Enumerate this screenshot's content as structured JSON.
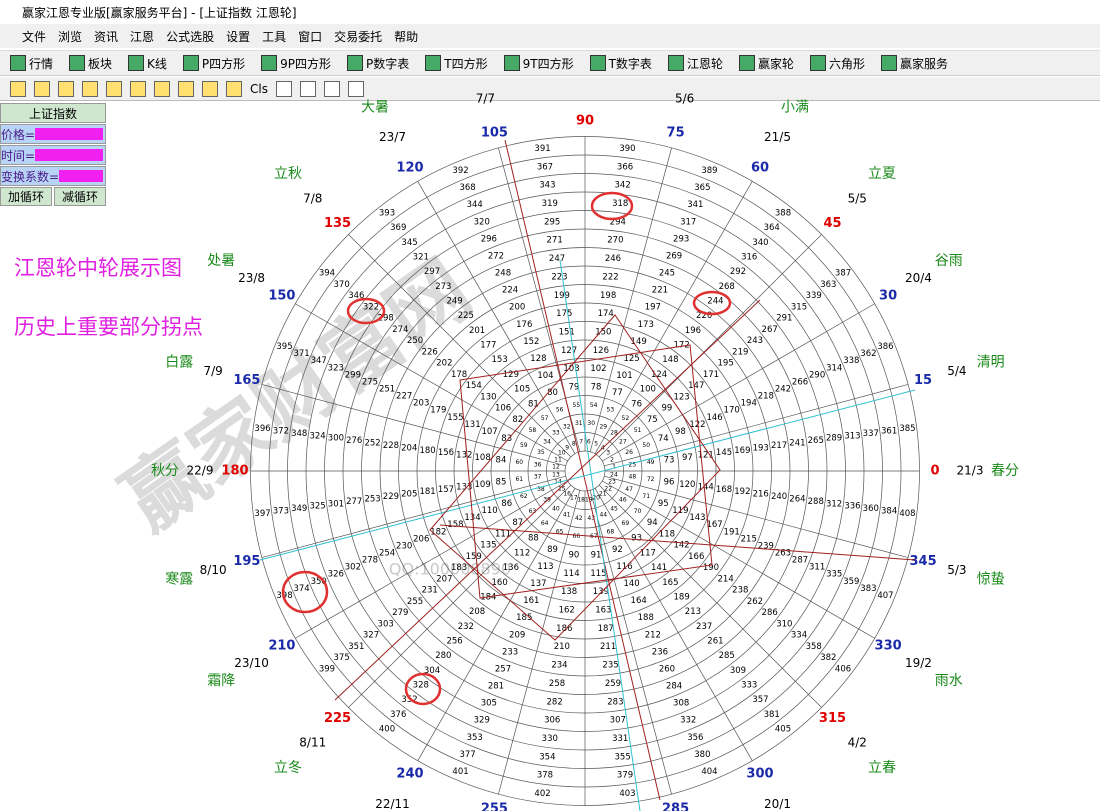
{
  "window": {
    "title": "赢家江恩专业版[赢家服务平台] - [上证指数 江恩轮]"
  },
  "menu": [
    "文件",
    "浏览",
    "资讯",
    "江恩",
    "公式选股",
    "设置",
    "工具",
    "窗口",
    "交易委托",
    "帮助"
  ],
  "toolbar": [
    "行情",
    "板块",
    "K线",
    "P四方形",
    "9P四方形",
    "P数字表",
    "T四方形",
    "9T四方形",
    "T数字表",
    "江恩轮",
    "赢家轮",
    "六角形",
    "赢家服务"
  ],
  "toolbar2": {
    "cls": "Cls"
  },
  "panel": {
    "title": "上证指数",
    "fields": [
      "价格=",
      "时间=",
      "变换系数="
    ],
    "buttons": [
      "加循环",
      "减循环"
    ]
  },
  "annotations": [
    "江恩轮中轮展示图",
    "历史上重要部分拐点"
  ],
  "watermark": [
    "赢家财富网",
    "QQ:100008890"
  ],
  "wheel": {
    "outer": [
      {
        "angle": 0,
        "date": "21/3",
        "term": "春分"
      },
      {
        "angle": 15,
        "date": "5/4",
        "term": "清明"
      },
      {
        "angle": 30,
        "date": "20/4",
        "term": "谷雨"
      },
      {
        "angle": 45,
        "date": "5/5",
        "term": "立夏"
      },
      {
        "angle": 60,
        "date": "21/5",
        "term": "小满"
      },
      {
        "angle": 75,
        "date": "5/6"
      },
      {
        "angle": 90
      },
      {
        "angle": 105,
        "date": "7/7"
      },
      {
        "angle": 120,
        "date": "23/7",
        "term": "大暑"
      },
      {
        "angle": 135,
        "date": "7/8",
        "term": "立秋"
      },
      {
        "angle": 150,
        "date": "23/8",
        "term": "处暑"
      },
      {
        "angle": 165,
        "date": "7/9",
        "term": "白露"
      },
      {
        "angle": 180,
        "date": "22/9",
        "term": "秋分"
      },
      {
        "angle": 195,
        "date": "8/10",
        "term": "寒露"
      },
      {
        "angle": 210,
        "date": "23/10",
        "term": "霜降"
      },
      {
        "angle": 225,
        "date": "8/11",
        "term": "立冬"
      },
      {
        "angle": 240,
        "date": "22/11"
      },
      {
        "angle": 255
      },
      {
        "angle": 285
      },
      {
        "angle": 300,
        "date": "20/1"
      },
      {
        "angle": 315,
        "date": "4/2",
        "term": "立春"
      },
      {
        "angle": 330,
        "date": "19/2",
        "term": "雨水"
      },
      {
        "angle": 345,
        "date": "5/3",
        "term": "惊蛰"
      }
    ],
    "numbers": [
      1,
      2,
      3,
      4,
      5,
      6,
      7,
      8,
      9,
      10,
      11,
      12,
      13,
      14,
      15,
      16,
      17,
      18,
      19,
      20,
      21,
      22,
      23,
      24,
      25,
      26,
      27,
      28,
      29,
      30,
      31,
      32,
      33,
      34,
      35,
      36,
      37,
      38,
      39,
      40,
      41,
      42,
      43,
      44,
      45,
      46,
      47,
      48,
      49,
      50,
      51,
      52,
      53,
      54,
      55,
      56,
      57,
      58,
      59,
      60,
      61,
      62,
      63,
      64,
      65,
      66,
      67,
      68,
      69,
      70,
      71,
      72,
      73,
      74,
      75,
      76,
      77,
      78,
      79,
      80,
      81,
      82,
      83,
      84,
      85,
      86,
      87,
      88,
      89,
      90,
      91,
      92,
      93,
      94,
      95,
      96,
      97,
      98,
      99,
      100,
      101,
      102,
      103,
      104,
      105,
      106,
      107,
      108,
      109,
      110,
      111,
      112,
      113,
      114,
      115,
      116,
      117,
      118,
      119,
      120,
      121,
      122,
      123,
      124,
      125,
      126,
      127,
      128,
      129,
      130,
      131,
      132,
      133,
      134,
      135,
      136,
      137,
      138,
      139,
      140,
      141,
      142,
      143,
      144,
      145,
      146,
      147,
      148,
      149,
      150,
      151,
      152,
      153,
      154,
      155,
      156,
      157,
      158,
      159,
      160,
      161,
      162,
      163,
      164,
      165,
      166,
      167,
      168,
      169,
      170,
      171,
      172,
      173,
      174,
      175,
      176,
      177,
      178,
      179,
      180,
      181,
      182,
      183,
      184,
      185,
      186,
      187,
      188,
      189,
      190,
      191,
      192,
      193,
      194,
      195,
      196,
      197,
      198,
      199,
      200,
      201,
      202,
      203,
      204,
      205,
      206,
      207,
      208,
      209,
      210,
      211,
      212,
      213,
      214,
      215,
      216,
      217,
      218,
      219,
      220,
      221,
      222,
      223,
      224,
      225,
      226,
      227,
      228,
      229,
      230,
      231,
      232,
      233,
      234,
      235,
      236,
      237,
      238,
      239,
      240,
      241,
      242,
      243,
      244,
      245,
      246,
      247,
      248,
      249,
      250,
      251,
      252,
      253,
      254,
      255,
      256,
      257,
      258,
      259,
      260,
      261,
      262,
      263,
      264,
      265,
      266,
      267,
      268,
      269,
      270,
      271,
      272,
      273,
      274,
      275,
      276,
      277,
      278,
      279,
      280,
      281,
      282,
      283,
      284,
      285,
      286,
      287,
      288,
      289,
      290,
      291,
      292,
      293,
      294,
      295,
      296,
      297,
      298,
      299,
      300,
      301,
      302,
      303,
      304,
      305,
      306,
      307,
      308,
      309,
      310,
      311,
      312,
      313,
      314,
      315,
      316,
      317,
      318,
      319,
      320,
      321,
      322,
      323,
      324,
      325,
      326,
      327,
      328,
      329,
      330,
      331,
      332,
      333,
      334,
      335,
      336,
      337,
      338,
      339,
      340,
      341,
      342,
      343,
      344,
      345,
      346,
      347,
      348,
      349,
      350,
      351,
      352,
      353,
      354,
      355,
      356,
      357,
      358,
      359,
      360,
      361,
      362,
      363,
      364,
      365,
      366,
      367,
      368,
      369,
      370,
      371,
      372,
      373,
      374,
      375,
      376,
      377,
      378,
      379,
      380,
      381,
      382,
      383,
      384,
      385,
      386,
      387,
      388,
      389,
      390,
      391,
      392,
      393,
      394,
      395,
      396,
      397,
      398,
      399,
      400,
      401,
      402,
      403,
      404,
      405,
      406,
      407,
      408
    ],
    "colors": {
      "major": "#e00000",
      "minor": "#1a2aa8",
      "date": "#000000",
      "term": "#1a8a1a",
      "number": "#000000"
    }
  }
}
